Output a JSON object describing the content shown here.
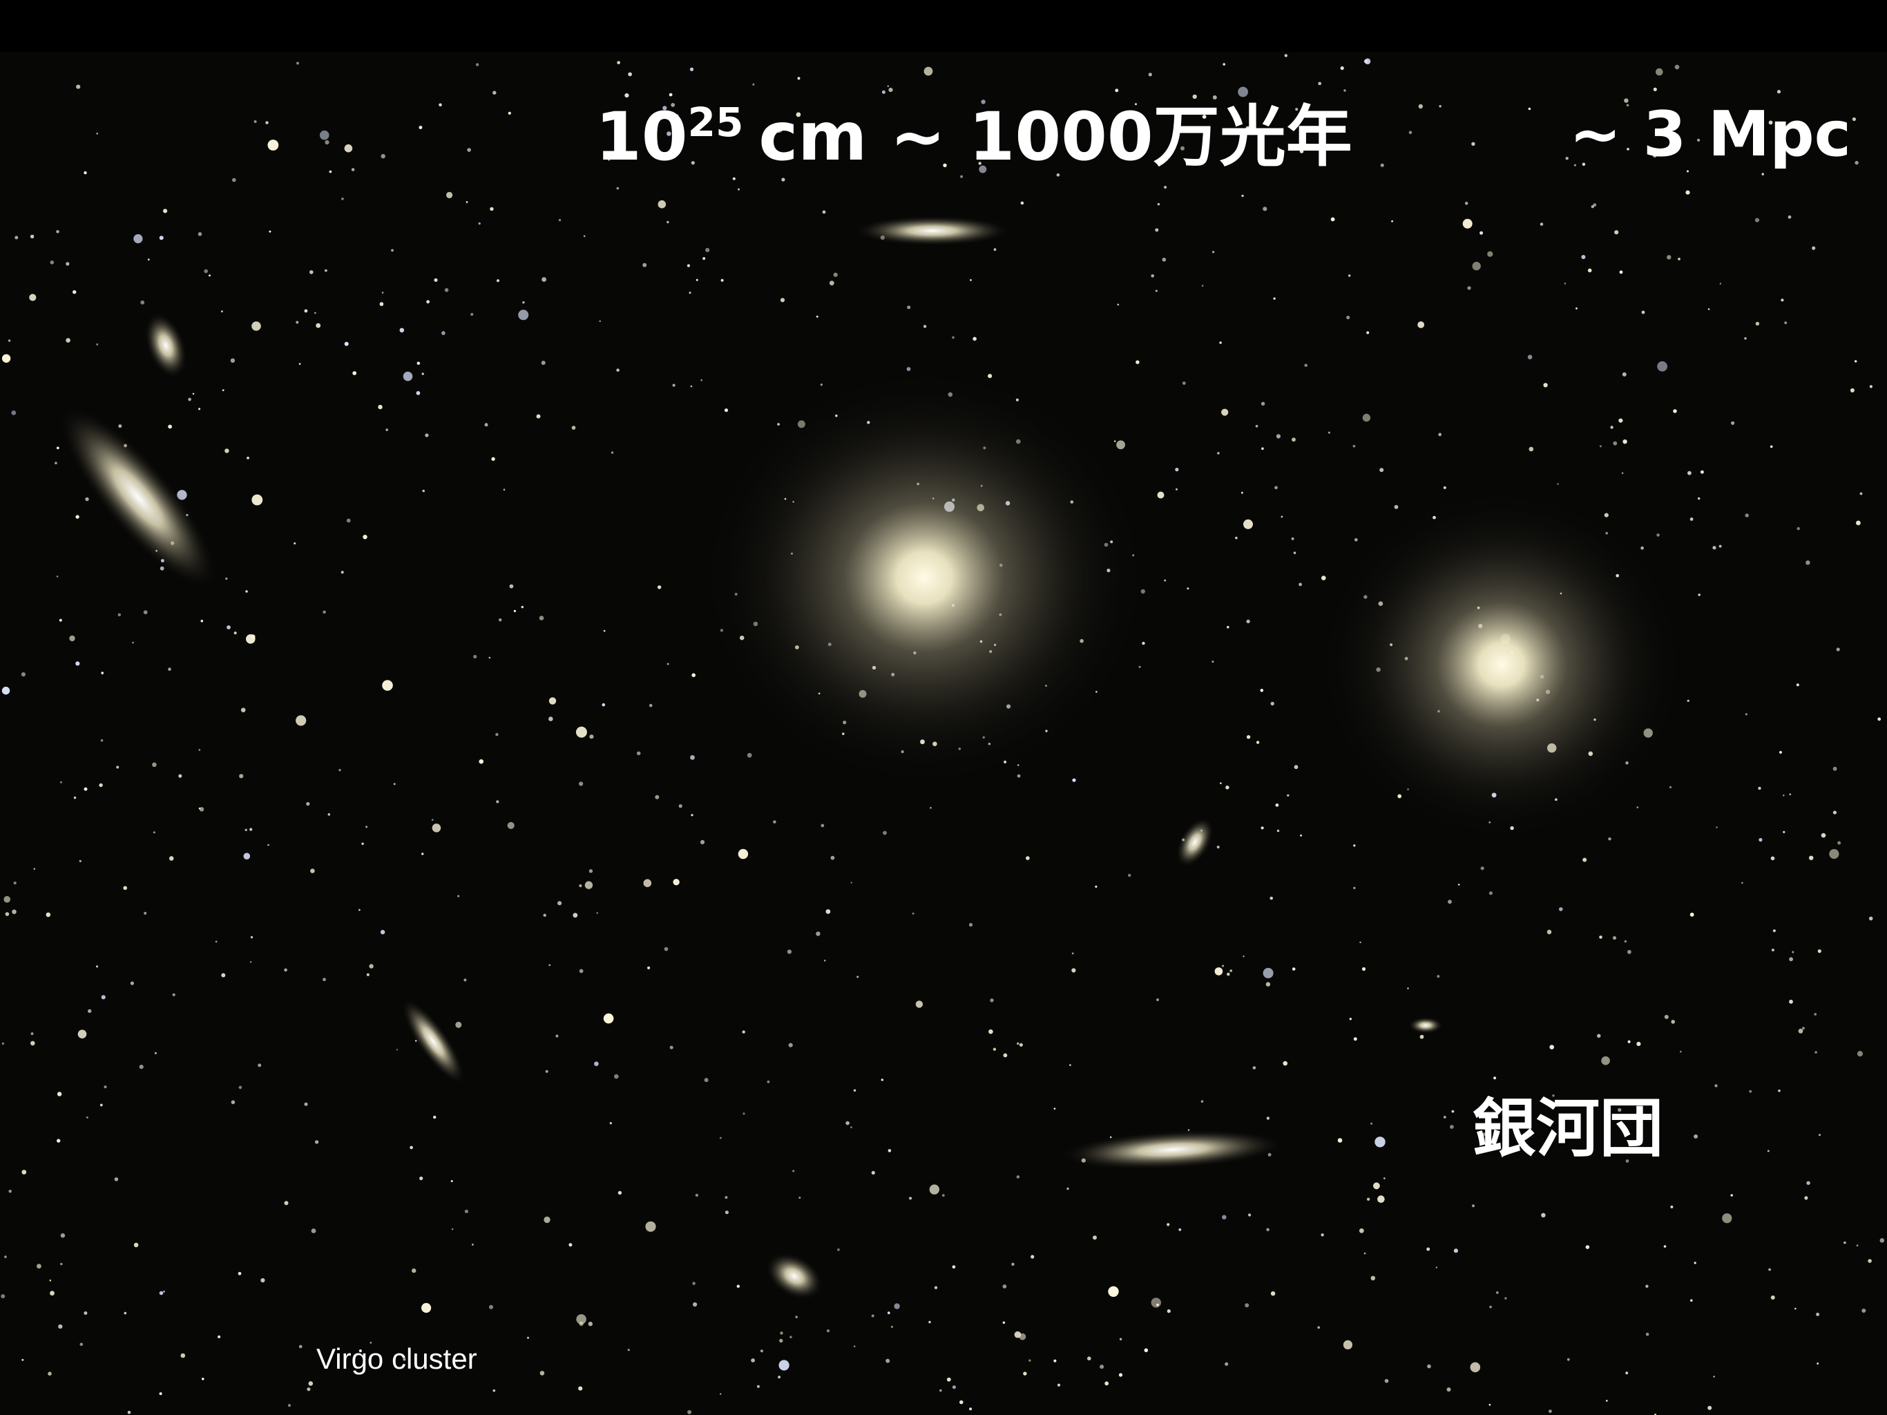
{
  "title": {
    "base": "10",
    "exponent": "25",
    "rest": "cm ~ 1000万光年"
  },
  "scale": "~ 3 Mpc",
  "label": "銀河団",
  "caption": "Virgo cluster"
}
